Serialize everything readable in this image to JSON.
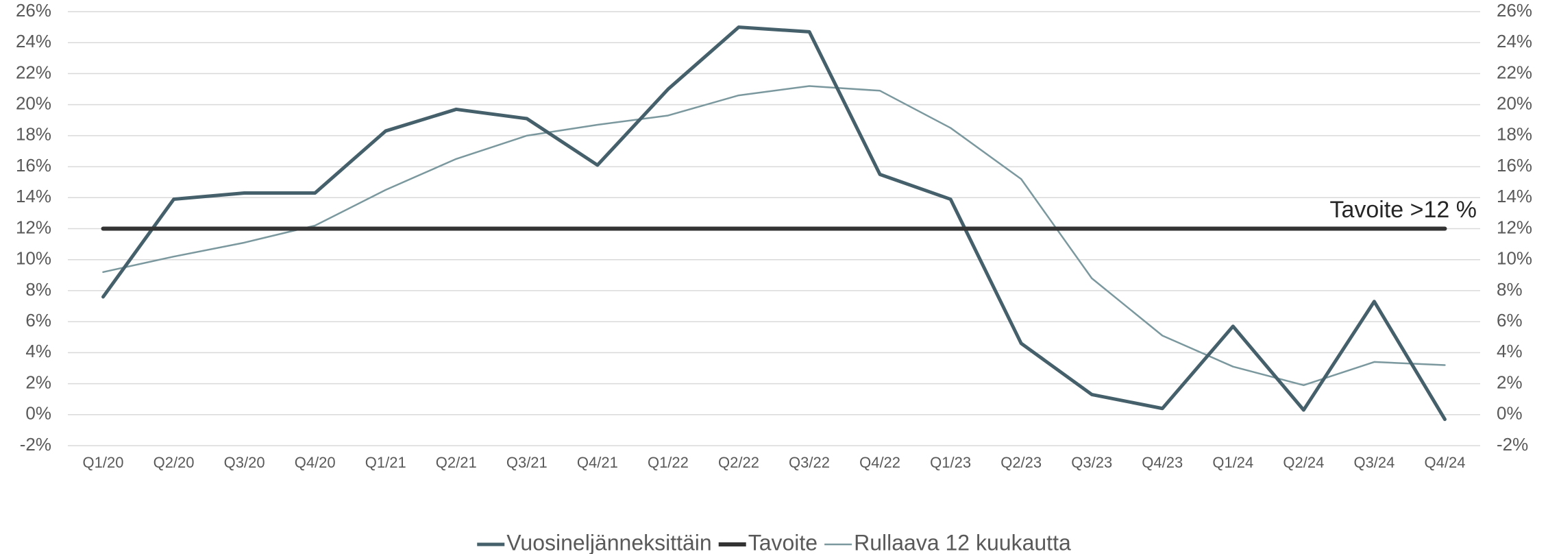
{
  "chart_data": {
    "type": "line",
    "categories": [
      "Q1/20",
      "Q2/20",
      "Q3/20",
      "Q4/20",
      "Q1/21",
      "Q2/21",
      "Q3/21",
      "Q4/21",
      "Q1/22",
      "Q2/22",
      "Q3/22",
      "Q4/22",
      "Q1/23",
      "Q2/23",
      "Q3/23",
      "Q4/23",
      "Q1/24",
      "Q2/24",
      "Q3/24",
      "Q4/24"
    ],
    "series": [
      {
        "name": "Vuosineljänneksittäin",
        "color": "#45606a",
        "line_width": 5,
        "values": [
          7.6,
          13.9,
          14.3,
          14.3,
          18.3,
          19.7,
          19.1,
          16.1,
          21.0,
          25.0,
          24.7,
          15.5,
          13.9,
          4.6,
          1.3,
          0.4,
          5.7,
          0.3,
          7.3,
          -0.3
        ]
      },
      {
        "name": "Tavoite",
        "color": "#333333",
        "line_width": 6,
        "values": [
          12,
          12,
          12,
          12,
          12,
          12,
          12,
          12,
          12,
          12,
          12,
          12,
          12,
          12,
          12,
          12,
          12,
          12,
          12,
          12
        ]
      },
      {
        "name": "Rullaava 12 kuukautta",
        "color": "#7a989e",
        "line_width": 2.5,
        "values": [
          9.2,
          10.2,
          11.1,
          12.2,
          14.5,
          16.5,
          18.0,
          18.7,
          19.3,
          20.6,
          21.2,
          20.9,
          18.5,
          15.2,
          8.8,
          5.1,
          3.1,
          1.9,
          3.4,
          3.2
        ]
      }
    ],
    "annotation": "Tavoite >12 %",
    "ylim": [
      -2,
      26
    ],
    "yticks": [
      {
        "value": -2,
        "label": "-2%"
      },
      {
        "value": 0,
        "label": "0%"
      },
      {
        "value": 2,
        "label": "2%"
      },
      {
        "value": 4,
        "label": "4%"
      },
      {
        "value": 6,
        "label": "6%"
      },
      {
        "value": 8,
        "label": "8%"
      },
      {
        "value": 10,
        "label": "10%"
      },
      {
        "value": 12,
        "label": "12%"
      },
      {
        "value": 14,
        "label": "14%"
      },
      {
        "value": 16,
        "label": "16%"
      },
      {
        "value": 18,
        "label": "18%"
      },
      {
        "value": 20,
        "label": "20%"
      },
      {
        "value": 22,
        "label": "22%"
      },
      {
        "value": 24,
        "label": "24%"
      },
      {
        "value": 26,
        "label": "26%"
      }
    ],
    "y2lim": [
      -2,
      26
    ],
    "y2ticks": [
      {
        "value": -2,
        "label": "-2%"
      },
      {
        "value": 0,
        "label": "0%"
      },
      {
        "value": 2,
        "label": "2%"
      },
      {
        "value": 4,
        "label": "4%"
      },
      {
        "value": 6,
        "label": "6%"
      },
      {
        "value": 8,
        "label": "8%"
      },
      {
        "value": 10,
        "label": "10%"
      },
      {
        "value": 12,
        "label": "12%"
      },
      {
        "value": 14,
        "label": "14%"
      },
      {
        "value": 16,
        "label": "16%"
      },
      {
        "value": 18,
        "label": "18%"
      },
      {
        "value": 20,
        "label": "20%"
      },
      {
        "value": 22,
        "label": "22%"
      },
      {
        "value": 24,
        "label": "24%"
      },
      {
        "value": 26,
        "label": "26%"
      }
    ],
    "grid": true,
    "legend": "bottom"
  }
}
